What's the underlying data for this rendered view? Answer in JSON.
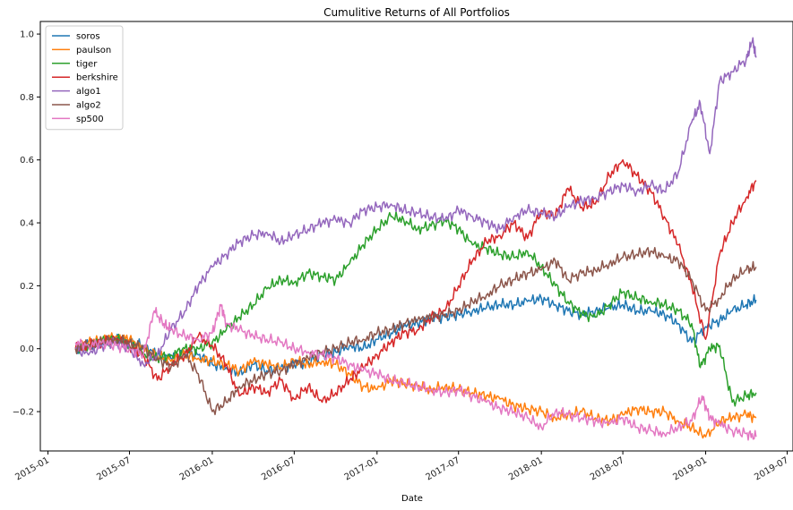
{
  "chart_data": {
    "type": "line",
    "title": "Cumulitive Returns of All Portfolios",
    "xlabel": "Date",
    "ylabel": "",
    "xlim": [
      "2014-12-15",
      "2019-07-14"
    ],
    "ylim": [
      -0.325,
      1.04
    ],
    "x_ticks": [
      "2015-01",
      "2015-07",
      "2016-01",
      "2016-07",
      "2017-01",
      "2017-07",
      "2018-01",
      "2018-07",
      "2019-01",
      "2019-07"
    ],
    "y_ticks": [
      -0.2,
      0.0,
      0.2,
      0.4,
      0.6,
      0.8,
      1.0
    ],
    "y_tick_labels": [
      "−0.2",
      "0.0",
      "0.2",
      "0.4",
      "0.6",
      "0.8",
      "1.0"
    ],
    "legend_position": "upper-left",
    "grid": false,
    "series": [
      {
        "name": "soros",
        "color": "#1f77b4",
        "x": [
          "2015-03-03",
          "2015-04-01",
          "2015-05-01",
          "2015-06-01",
          "2015-07-01",
          "2015-08-01",
          "2015-09-01",
          "2015-10-01",
          "2015-11-01",
          "2015-12-01",
          "2016-01-01",
          "2016-02-01",
          "2016-03-01",
          "2016-04-01",
          "2016-05-01",
          "2016-06-01",
          "2016-07-01",
          "2016-08-01",
          "2016-09-01",
          "2016-10-01",
          "2016-11-01",
          "2016-12-01",
          "2017-01-01",
          "2017-02-01",
          "2017-03-01",
          "2017-04-01",
          "2017-05-01",
          "2017-06-01",
          "2017-07-01",
          "2017-08-01",
          "2017-09-01",
          "2017-10-01",
          "2017-11-01",
          "2017-12-01",
          "2018-01-01",
          "2018-02-01",
          "2018-03-01",
          "2018-04-01",
          "2018-05-01",
          "2018-06-01",
          "2018-07-01",
          "2018-08-01",
          "2018-09-01",
          "2018-10-01",
          "2018-11-01",
          "2018-12-01",
          "2019-01-01",
          "2019-02-01",
          "2019-03-01",
          "2019-04-01",
          "2019-04-23"
        ],
        "y": [
          0,
          0.01,
          0.02,
          0.03,
          0.02,
          0.01,
          -0.02,
          -0.03,
          -0.01,
          -0.02,
          -0.05,
          -0.06,
          -0.08,
          -0.05,
          -0.07,
          -0.06,
          -0.05,
          -0.04,
          -0.02,
          -0.01,
          0.01,
          0.0,
          0.03,
          0.05,
          0.07,
          0.08,
          0.1,
          0.1,
          0.11,
          0.12,
          0.13,
          0.14,
          0.14,
          0.15,
          0.16,
          0.14,
          0.12,
          0.11,
          0.12,
          0.13,
          0.14,
          0.12,
          0.12,
          0.11,
          0.08,
          0.02,
          0.07,
          0.09,
          0.12,
          0.14,
          0.155
        ]
      },
      {
        "name": "paulson",
        "color": "#ff7f0e",
        "x": [
          "2015-03-03",
          "2015-04-01",
          "2015-05-01",
          "2015-06-01",
          "2015-07-01",
          "2015-08-01",
          "2015-09-01",
          "2015-10-01",
          "2015-11-01",
          "2015-12-01",
          "2016-01-01",
          "2016-02-01",
          "2016-03-01",
          "2016-04-01",
          "2016-05-01",
          "2016-06-01",
          "2016-07-01",
          "2016-08-01",
          "2016-09-01",
          "2016-10-01",
          "2016-11-01",
          "2016-12-01",
          "2017-01-01",
          "2017-02-01",
          "2017-03-01",
          "2017-04-01",
          "2017-05-01",
          "2017-06-01",
          "2017-07-01",
          "2017-08-01",
          "2017-09-01",
          "2017-10-01",
          "2017-11-01",
          "2017-12-01",
          "2018-01-01",
          "2018-02-01",
          "2018-03-01",
          "2018-04-01",
          "2018-05-01",
          "2018-06-01",
          "2018-07-01",
          "2018-08-01",
          "2018-09-01",
          "2018-10-01",
          "2018-11-01",
          "2018-12-01",
          "2019-01-01",
          "2019-02-01",
          "2019-03-01",
          "2019-04-01",
          "2019-04-23"
        ],
        "y": [
          0,
          0.02,
          0.03,
          0.04,
          0.03,
          0.0,
          -0.02,
          -0.04,
          -0.02,
          -0.03,
          -0.04,
          -0.05,
          -0.07,
          -0.04,
          -0.05,
          -0.06,
          -0.04,
          -0.05,
          -0.04,
          -0.05,
          -0.08,
          -0.12,
          -0.13,
          -0.1,
          -0.11,
          -0.12,
          -0.13,
          -0.12,
          -0.13,
          -0.14,
          -0.15,
          -0.16,
          -0.18,
          -0.19,
          -0.2,
          -0.22,
          -0.21,
          -0.2,
          -0.22,
          -0.23,
          -0.21,
          -0.19,
          -0.2,
          -0.2,
          -0.23,
          -0.25,
          -0.28,
          -0.23,
          -0.22,
          -0.21,
          -0.22
        ]
      },
      {
        "name": "tiger",
        "color": "#2ca02c",
        "x": [
          "2015-03-03",
          "2015-04-01",
          "2015-05-01",
          "2015-06-01",
          "2015-07-01",
          "2015-08-01",
          "2015-09-01",
          "2015-10-01",
          "2015-11-01",
          "2015-12-01",
          "2016-01-01",
          "2016-02-01",
          "2016-03-01",
          "2016-04-01",
          "2016-05-01",
          "2016-06-01",
          "2016-07-01",
          "2016-08-01",
          "2016-09-01",
          "2016-10-01",
          "2016-11-01",
          "2016-12-01",
          "2017-01-01",
          "2017-02-01",
          "2017-03-01",
          "2017-04-01",
          "2017-05-01",
          "2017-06-01",
          "2017-07-01",
          "2017-08-01",
          "2017-09-01",
          "2017-10-01",
          "2017-11-01",
          "2017-12-01",
          "2018-01-01",
          "2018-02-01",
          "2018-03-01",
          "2018-04-01",
          "2018-05-01",
          "2018-06-01",
          "2018-07-01",
          "2018-08-01",
          "2018-09-01",
          "2018-10-01",
          "2018-11-01",
          "2018-12-01",
          "2018-12-20",
          "2019-01-10",
          "2019-02-01",
          "2019-03-01",
          "2019-04-01",
          "2019-04-23"
        ],
        "y": [
          0,
          0.01,
          0.02,
          0.03,
          0.01,
          -0.02,
          -0.03,
          -0.02,
          0.0,
          0.0,
          0.02,
          0.06,
          0.1,
          0.14,
          0.19,
          0.22,
          0.21,
          0.24,
          0.23,
          0.22,
          0.27,
          0.33,
          0.38,
          0.42,
          0.41,
          0.38,
          0.39,
          0.41,
          0.38,
          0.33,
          0.32,
          0.3,
          0.29,
          0.31,
          0.26,
          0.2,
          0.15,
          0.11,
          0.1,
          0.14,
          0.18,
          0.16,
          0.15,
          0.14,
          0.12,
          0.08,
          -0.06,
          0.0,
          0.01,
          -0.17,
          -0.15,
          -0.14
        ]
      },
      {
        "name": "berkshire",
        "color": "#d62728",
        "x": [
          "2015-03-03",
          "2015-04-01",
          "2015-05-01",
          "2015-06-01",
          "2015-07-01",
          "2015-08-01",
          "2015-09-01",
          "2015-10-01",
          "2015-11-01",
          "2015-12-01",
          "2016-01-01",
          "2016-02-01",
          "2016-03-01",
          "2016-04-01",
          "2016-05-01",
          "2016-06-01",
          "2016-07-01",
          "2016-08-01",
          "2016-09-01",
          "2016-10-01",
          "2016-11-01",
          "2016-12-01",
          "2017-01-01",
          "2017-02-01",
          "2017-03-01",
          "2017-04-01",
          "2017-05-01",
          "2017-06-01",
          "2017-07-01",
          "2017-08-01",
          "2017-09-01",
          "2017-10-01",
          "2017-11-01",
          "2017-12-01",
          "2018-01-01",
          "2018-02-01",
          "2018-03-01",
          "2018-04-01",
          "2018-05-01",
          "2018-06-01",
          "2018-07-01",
          "2018-08-01",
          "2018-09-01",
          "2018-10-01",
          "2018-11-01",
          "2018-12-01",
          "2019-01-01",
          "2019-02-01",
          "2019-03-01",
          "2019-04-01",
          "2019-04-23"
        ],
        "y": [
          0,
          0.01,
          0.02,
          0.03,
          0.01,
          -0.02,
          -0.1,
          -0.05,
          -0.02,
          0.04,
          0.01,
          -0.05,
          -0.15,
          -0.12,
          -0.14,
          -0.1,
          -0.16,
          -0.12,
          -0.17,
          -0.14,
          -0.1,
          -0.06,
          -0.02,
          0.02,
          0.05,
          0.06,
          0.1,
          0.12,
          0.2,
          0.28,
          0.34,
          0.36,
          0.4,
          0.35,
          0.44,
          0.42,
          0.51,
          0.45,
          0.46,
          0.55,
          0.6,
          0.55,
          0.5,
          0.42,
          0.33,
          0.2,
          0.03,
          0.3,
          0.4,
          0.48,
          0.535
        ]
      },
      {
        "name": "algo1",
        "color": "#9467bd",
        "x": [
          "2015-03-03",
          "2015-04-01",
          "2015-05-01",
          "2015-06-01",
          "2015-07-01",
          "2015-08-01",
          "2015-09-01",
          "2015-10-01",
          "2015-11-01",
          "2015-12-01",
          "2016-01-01",
          "2016-02-01",
          "2016-03-01",
          "2016-04-01",
          "2016-05-01",
          "2016-06-01",
          "2016-07-01",
          "2016-08-01",
          "2016-09-01",
          "2016-10-01",
          "2016-11-01",
          "2016-12-01",
          "2017-01-01",
          "2017-02-01",
          "2017-03-01",
          "2017-04-01",
          "2017-05-01",
          "2017-06-01",
          "2017-07-01",
          "2017-08-01",
          "2017-09-01",
          "2017-10-01",
          "2017-11-01",
          "2017-12-01",
          "2018-01-01",
          "2018-02-01",
          "2018-03-01",
          "2018-04-01",
          "2018-05-01",
          "2018-06-01",
          "2018-07-01",
          "2018-08-01",
          "2018-09-01",
          "2018-10-01",
          "2018-11-01",
          "2018-12-01",
          "2018-12-20",
          "2019-01-10",
          "2019-02-01",
          "2019-03-01",
          "2019-04-01",
          "2019-04-15",
          "2019-04-23"
        ],
        "y": [
          0,
          -0.02,
          0.01,
          0.02,
          0.0,
          -0.05,
          -0.02,
          0.06,
          0.12,
          0.2,
          0.26,
          0.3,
          0.34,
          0.36,
          0.37,
          0.34,
          0.36,
          0.38,
          0.4,
          0.41,
          0.4,
          0.44,
          0.45,
          0.46,
          0.44,
          0.43,
          0.42,
          0.41,
          0.44,
          0.42,
          0.4,
          0.38,
          0.42,
          0.44,
          0.43,
          0.42,
          0.45,
          0.47,
          0.48,
          0.5,
          0.52,
          0.5,
          0.52,
          0.5,
          0.56,
          0.72,
          0.78,
          0.62,
          0.85,
          0.88,
          0.92,
          0.98,
          0.925
        ]
      },
      {
        "name": "algo2",
        "color": "#8c564b",
        "x": [
          "2015-03-03",
          "2015-04-01",
          "2015-05-01",
          "2015-06-01",
          "2015-07-01",
          "2015-08-01",
          "2015-09-01",
          "2015-10-01",
          "2015-11-01",
          "2015-12-01",
          "2016-01-01",
          "2016-02-01",
          "2016-03-01",
          "2016-04-01",
          "2016-05-01",
          "2016-06-01",
          "2016-07-01",
          "2016-08-01",
          "2016-09-01",
          "2016-10-01",
          "2016-11-01",
          "2016-12-01",
          "2017-01-01",
          "2017-02-01",
          "2017-03-01",
          "2017-04-01",
          "2017-05-01",
          "2017-06-01",
          "2017-07-01",
          "2017-08-01",
          "2017-09-01",
          "2017-10-01",
          "2017-11-01",
          "2017-12-01",
          "2018-01-01",
          "2018-02-01",
          "2018-03-01",
          "2018-04-01",
          "2018-05-01",
          "2018-06-01",
          "2018-07-01",
          "2018-08-01",
          "2018-09-01",
          "2018-10-01",
          "2018-11-01",
          "2018-12-01",
          "2019-01-01",
          "2019-02-01",
          "2019-03-01",
          "2019-04-01",
          "2019-04-23"
        ],
        "y": [
          0,
          0.01,
          0.02,
          0.03,
          0.02,
          0.0,
          -0.03,
          -0.06,
          -0.02,
          -0.08,
          -0.2,
          -0.17,
          -0.12,
          -0.1,
          -0.08,
          -0.07,
          -0.05,
          -0.03,
          -0.01,
          0.0,
          0.02,
          0.03,
          0.05,
          0.06,
          0.08,
          0.09,
          0.1,
          0.11,
          0.12,
          0.15,
          0.17,
          0.2,
          0.22,
          0.24,
          0.25,
          0.28,
          0.22,
          0.24,
          0.25,
          0.27,
          0.29,
          0.3,
          0.31,
          0.29,
          0.28,
          0.22,
          0.12,
          0.16,
          0.22,
          0.25,
          0.26
        ]
      },
      {
        "name": "sp500",
        "color": "#e377c2",
        "x": [
          "2015-03-03",
          "2015-04-01",
          "2015-05-01",
          "2015-06-01",
          "2015-07-01",
          "2015-08-01",
          "2015-08-25",
          "2015-09-15",
          "2015-10-01",
          "2015-11-01",
          "2015-12-01",
          "2016-01-01",
          "2016-01-20",
          "2016-02-01",
          "2016-03-01",
          "2016-04-01",
          "2016-05-01",
          "2016-06-01",
          "2016-07-01",
          "2016-08-01",
          "2016-09-01",
          "2016-10-01",
          "2016-11-01",
          "2016-12-01",
          "2017-01-01",
          "2017-02-01",
          "2017-03-01",
          "2017-04-01",
          "2017-05-01",
          "2017-06-01",
          "2017-07-01",
          "2017-08-01",
          "2017-09-01",
          "2017-10-01",
          "2017-11-01",
          "2017-12-01",
          "2018-01-01",
          "2018-02-01",
          "2018-03-01",
          "2018-04-01",
          "2018-05-01",
          "2018-06-01",
          "2018-07-01",
          "2018-08-01",
          "2018-09-01",
          "2018-10-01",
          "2018-11-01",
          "2018-12-01",
          "2018-12-24",
          "2019-01-10",
          "2019-02-01",
          "2019-03-01",
          "2019-04-01",
          "2019-04-23"
        ],
        "y": [
          0.02,
          0.01,
          0.02,
          0.01,
          0.0,
          -0.02,
          0.12,
          0.08,
          0.06,
          0.04,
          0.03,
          0.05,
          0.14,
          0.08,
          0.06,
          0.04,
          0.03,
          0.02,
          0.0,
          -0.01,
          -0.02,
          -0.03,
          -0.05,
          -0.07,
          -0.08,
          -0.1,
          -0.11,
          -0.12,
          -0.13,
          -0.14,
          -0.13,
          -0.15,
          -0.17,
          -0.19,
          -0.2,
          -0.22,
          -0.25,
          -0.2,
          -0.21,
          -0.22,
          -0.23,
          -0.24,
          -0.22,
          -0.25,
          -0.26,
          -0.27,
          -0.25,
          -0.23,
          -0.15,
          -0.22,
          -0.24,
          -0.26,
          -0.27,
          -0.28
        ]
      }
    ]
  }
}
